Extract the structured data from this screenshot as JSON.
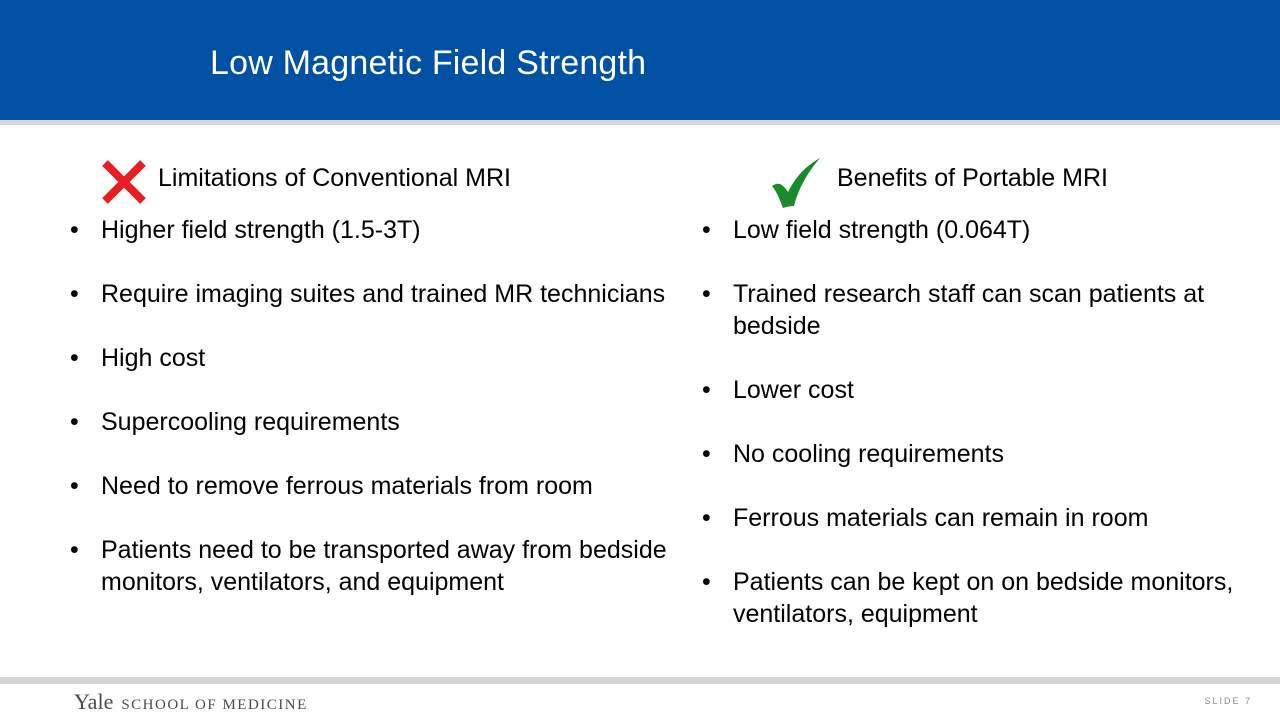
{
  "slide": {
    "title": "Low Magnetic Field Strength"
  },
  "left_column": {
    "heading": "Limitations of Conventional MRI",
    "icon": "cross-icon",
    "icon_color": "#e81c23",
    "items": [
      "Higher field strength (1.5-3T)",
      "Require imaging suites and trained MR technicians",
      "High cost",
      "Supercooling requirements",
      "Need to remove ferrous materials from room",
      "Patients need  to be transported away from bedside monitors, ventilators, and equipment"
    ]
  },
  "right_column": {
    "heading": "Benefits of Portable MRI",
    "icon": "check-icon",
    "icon_color": "#1a8a2a",
    "items": [
      "Low field strength (0.064T)",
      "Trained research staff can scan patients at bedside",
      "Lower cost",
      "No cooling requirements",
      "Ferrous materials can remain in room",
      "Patients can be kept on on bedside monitors, ventilators, equipment"
    ]
  },
  "footer": {
    "brand_yale": "Yale",
    "brand_school": "SCHOOL OF MEDICINE",
    "slide_number": "SLIDE 7"
  },
  "colors": {
    "header": "#0050a3",
    "rule": "#d6d6d6"
  }
}
